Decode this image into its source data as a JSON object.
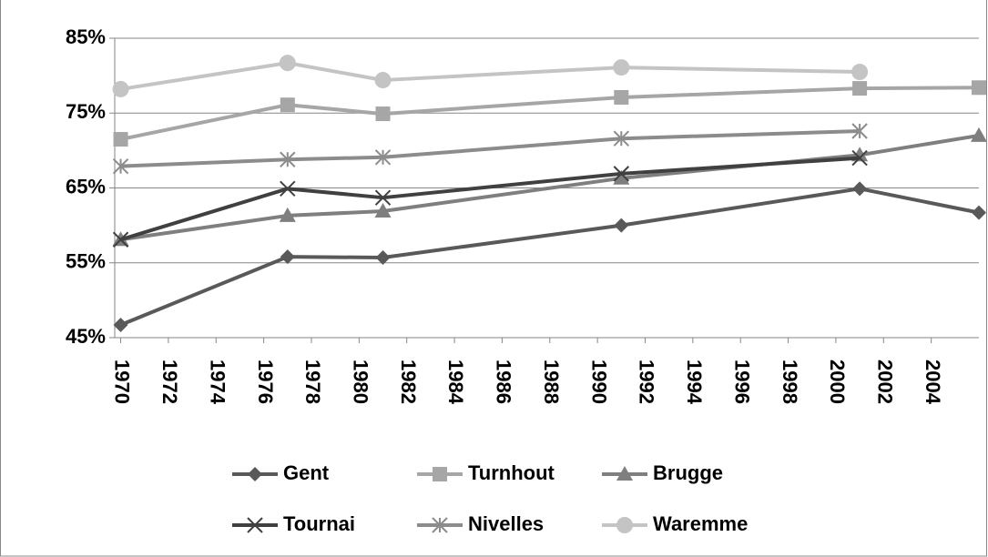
{
  "chart_data": {
    "type": "line",
    "x": [
      1970,
      1977,
      1981,
      1991,
      2001,
      2006
    ],
    "xlim": [
      1969.75,
      2006
    ],
    "xticks": [
      1970,
      1972,
      1974,
      1976,
      1978,
      1980,
      1982,
      1984,
      1986,
      1988,
      1990,
      1992,
      1994,
      1996,
      1998,
      2000,
      2002,
      2004
    ],
    "ylim": [
      45,
      85
    ],
    "yticks": [
      {
        "value": 45,
        "label": "45%"
      },
      {
        "value": 55,
        "label": "55%"
      },
      {
        "value": 65,
        "label": "65%"
      },
      {
        "value": 75,
        "label": "75%"
      },
      {
        "value": 85,
        "label": "85%"
      }
    ],
    "grid": true,
    "legend": "bottom",
    "series": [
      {
        "name": "Gent",
        "color": "#595959",
        "marker": "diamond",
        "values": [
          46.7,
          55.8,
          55.7,
          60.0,
          64.9,
          61.7
        ]
      },
      {
        "name": "Turnhout",
        "color": "#a6a6a6",
        "marker": "square",
        "values": [
          71.5,
          76.1,
          74.9,
          77.1,
          78.3,
          78.4
        ]
      },
      {
        "name": "Brugge",
        "color": "#7f7f7f",
        "marker": "triangle",
        "values": [
          58.1,
          61.3,
          61.9,
          66.3,
          69.4,
          72.0
        ]
      },
      {
        "name": "Tournai",
        "color": "#404040",
        "marker": "x",
        "values": [
          58.1,
          64.9,
          63.7,
          66.9,
          69.0,
          null
        ]
      },
      {
        "name": "Nivelles",
        "color": "#8c8c8c",
        "marker": "star",
        "values": [
          67.9,
          68.8,
          69.1,
          71.6,
          72.6,
          null
        ]
      },
      {
        "name": "Waremme",
        "color": "#c4c4c4",
        "marker": "circle",
        "values": [
          78.2,
          81.7,
          79.4,
          81.1,
          80.5,
          null
        ]
      }
    ]
  }
}
